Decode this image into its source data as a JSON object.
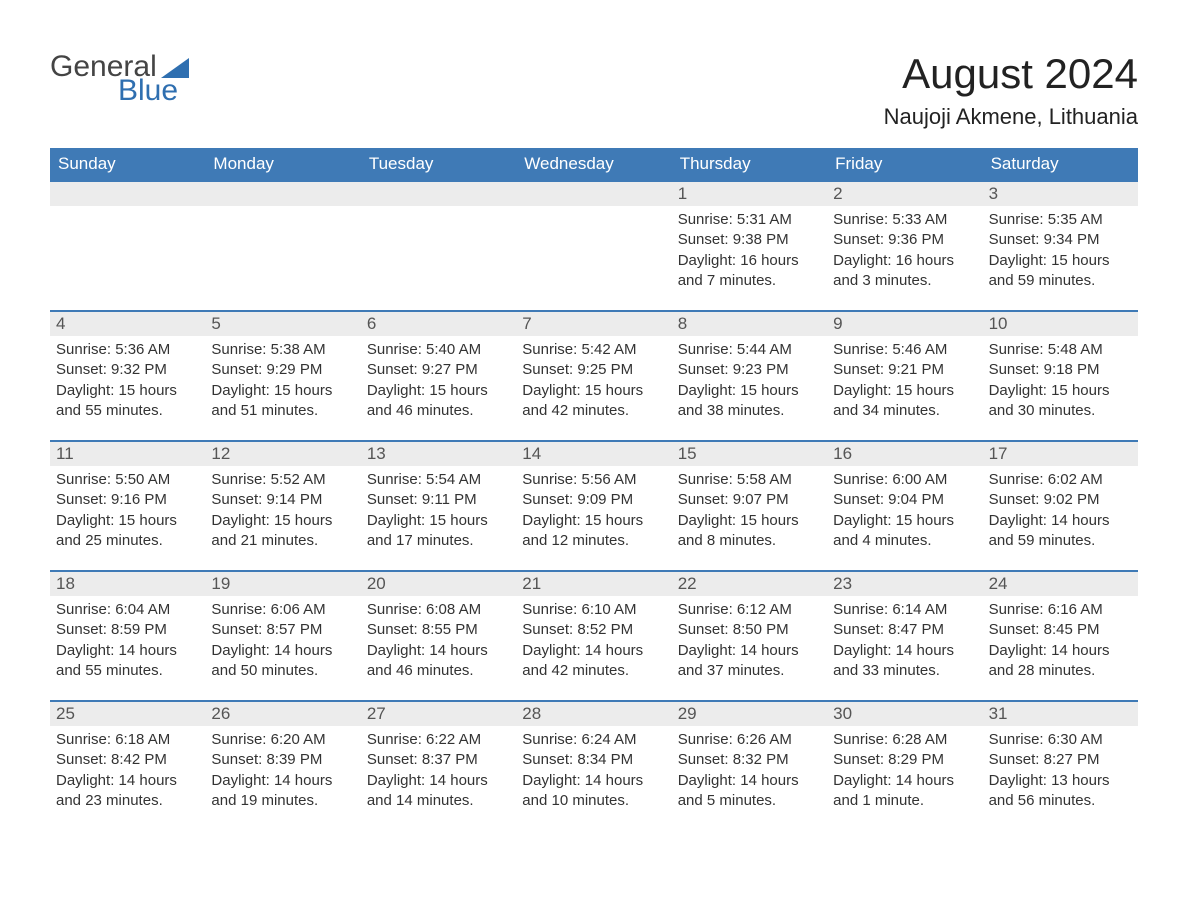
{
  "brand": {
    "word1": "General",
    "word2": "Blue",
    "triangle_color": "#2f6fb0",
    "word1_color": "#444444",
    "word2_color": "#2f6fb0"
  },
  "title": "August 2024",
  "location": "Naujoji Akmene, Lithuania",
  "colors": {
    "header_bg": "#3f7ab6",
    "header_text": "#ffffff",
    "daynum_bg": "#ececec",
    "daynum_text": "#555555",
    "body_text": "#333333",
    "row_border": "#3f7ab6",
    "page_bg": "#ffffff"
  },
  "days_of_week": [
    "Sunday",
    "Monday",
    "Tuesday",
    "Wednesday",
    "Thursday",
    "Friday",
    "Saturday"
  ],
  "weeks": [
    [
      {
        "blank": true
      },
      {
        "blank": true
      },
      {
        "blank": true
      },
      {
        "blank": true
      },
      {
        "num": "1",
        "sunrise": "Sunrise: 5:31 AM",
        "sunset": "Sunset: 9:38 PM",
        "daylight": "Daylight: 16 hours and 7 minutes."
      },
      {
        "num": "2",
        "sunrise": "Sunrise: 5:33 AM",
        "sunset": "Sunset: 9:36 PM",
        "daylight": "Daylight: 16 hours and 3 minutes."
      },
      {
        "num": "3",
        "sunrise": "Sunrise: 5:35 AM",
        "sunset": "Sunset: 9:34 PM",
        "daylight": "Daylight: 15 hours and 59 minutes."
      }
    ],
    [
      {
        "num": "4",
        "sunrise": "Sunrise: 5:36 AM",
        "sunset": "Sunset: 9:32 PM",
        "daylight": "Daylight: 15 hours and 55 minutes."
      },
      {
        "num": "5",
        "sunrise": "Sunrise: 5:38 AM",
        "sunset": "Sunset: 9:29 PM",
        "daylight": "Daylight: 15 hours and 51 minutes."
      },
      {
        "num": "6",
        "sunrise": "Sunrise: 5:40 AM",
        "sunset": "Sunset: 9:27 PM",
        "daylight": "Daylight: 15 hours and 46 minutes."
      },
      {
        "num": "7",
        "sunrise": "Sunrise: 5:42 AM",
        "sunset": "Sunset: 9:25 PM",
        "daylight": "Daylight: 15 hours and 42 minutes."
      },
      {
        "num": "8",
        "sunrise": "Sunrise: 5:44 AM",
        "sunset": "Sunset: 9:23 PM",
        "daylight": "Daylight: 15 hours and 38 minutes."
      },
      {
        "num": "9",
        "sunrise": "Sunrise: 5:46 AM",
        "sunset": "Sunset: 9:21 PM",
        "daylight": "Daylight: 15 hours and 34 minutes."
      },
      {
        "num": "10",
        "sunrise": "Sunrise: 5:48 AM",
        "sunset": "Sunset: 9:18 PM",
        "daylight": "Daylight: 15 hours and 30 minutes."
      }
    ],
    [
      {
        "num": "11",
        "sunrise": "Sunrise: 5:50 AM",
        "sunset": "Sunset: 9:16 PM",
        "daylight": "Daylight: 15 hours and 25 minutes."
      },
      {
        "num": "12",
        "sunrise": "Sunrise: 5:52 AM",
        "sunset": "Sunset: 9:14 PM",
        "daylight": "Daylight: 15 hours and 21 minutes."
      },
      {
        "num": "13",
        "sunrise": "Sunrise: 5:54 AM",
        "sunset": "Sunset: 9:11 PM",
        "daylight": "Daylight: 15 hours and 17 minutes."
      },
      {
        "num": "14",
        "sunrise": "Sunrise: 5:56 AM",
        "sunset": "Sunset: 9:09 PM",
        "daylight": "Daylight: 15 hours and 12 minutes."
      },
      {
        "num": "15",
        "sunrise": "Sunrise: 5:58 AM",
        "sunset": "Sunset: 9:07 PM",
        "daylight": "Daylight: 15 hours and 8 minutes."
      },
      {
        "num": "16",
        "sunrise": "Sunrise: 6:00 AM",
        "sunset": "Sunset: 9:04 PM",
        "daylight": "Daylight: 15 hours and 4 minutes."
      },
      {
        "num": "17",
        "sunrise": "Sunrise: 6:02 AM",
        "sunset": "Sunset: 9:02 PM",
        "daylight": "Daylight: 14 hours and 59 minutes."
      }
    ],
    [
      {
        "num": "18",
        "sunrise": "Sunrise: 6:04 AM",
        "sunset": "Sunset: 8:59 PM",
        "daylight": "Daylight: 14 hours and 55 minutes."
      },
      {
        "num": "19",
        "sunrise": "Sunrise: 6:06 AM",
        "sunset": "Sunset: 8:57 PM",
        "daylight": "Daylight: 14 hours and 50 minutes."
      },
      {
        "num": "20",
        "sunrise": "Sunrise: 6:08 AM",
        "sunset": "Sunset: 8:55 PM",
        "daylight": "Daylight: 14 hours and 46 minutes."
      },
      {
        "num": "21",
        "sunrise": "Sunrise: 6:10 AM",
        "sunset": "Sunset: 8:52 PM",
        "daylight": "Daylight: 14 hours and 42 minutes."
      },
      {
        "num": "22",
        "sunrise": "Sunrise: 6:12 AM",
        "sunset": "Sunset: 8:50 PM",
        "daylight": "Daylight: 14 hours and 37 minutes."
      },
      {
        "num": "23",
        "sunrise": "Sunrise: 6:14 AM",
        "sunset": "Sunset: 8:47 PM",
        "daylight": "Daylight: 14 hours and 33 minutes."
      },
      {
        "num": "24",
        "sunrise": "Sunrise: 6:16 AM",
        "sunset": "Sunset: 8:45 PM",
        "daylight": "Daylight: 14 hours and 28 minutes."
      }
    ],
    [
      {
        "num": "25",
        "sunrise": "Sunrise: 6:18 AM",
        "sunset": "Sunset: 8:42 PM",
        "daylight": "Daylight: 14 hours and 23 minutes."
      },
      {
        "num": "26",
        "sunrise": "Sunrise: 6:20 AM",
        "sunset": "Sunset: 8:39 PM",
        "daylight": "Daylight: 14 hours and 19 minutes."
      },
      {
        "num": "27",
        "sunrise": "Sunrise: 6:22 AM",
        "sunset": "Sunset: 8:37 PM",
        "daylight": "Daylight: 14 hours and 14 minutes."
      },
      {
        "num": "28",
        "sunrise": "Sunrise: 6:24 AM",
        "sunset": "Sunset: 8:34 PM",
        "daylight": "Daylight: 14 hours and 10 minutes."
      },
      {
        "num": "29",
        "sunrise": "Sunrise: 6:26 AM",
        "sunset": "Sunset: 8:32 PM",
        "daylight": "Daylight: 14 hours and 5 minutes."
      },
      {
        "num": "30",
        "sunrise": "Sunrise: 6:28 AM",
        "sunset": "Sunset: 8:29 PM",
        "daylight": "Daylight: 14 hours and 1 minute."
      },
      {
        "num": "31",
        "sunrise": "Sunrise: 6:30 AM",
        "sunset": "Sunset: 8:27 PM",
        "daylight": "Daylight: 13 hours and 56 minutes."
      }
    ]
  ]
}
